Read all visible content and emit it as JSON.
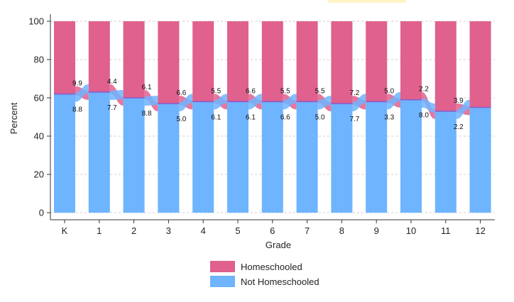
{
  "chart_data": {
    "type": "bar",
    "title": "",
    "xlabel": "Grade",
    "ylabel": "Percent",
    "ylim": [
      0,
      100
    ],
    "yticks": [
      0,
      20,
      40,
      60,
      80,
      100
    ],
    "categories": [
      "K",
      "1",
      "2",
      "3",
      "4",
      "5",
      "6",
      "7",
      "8",
      "9",
      "10",
      "11",
      "12"
    ],
    "series": [
      {
        "name": "Homeschooled",
        "color": "#E0608E",
        "values": [
          38,
          37,
          40,
          43,
          42,
          42,
          42,
          42,
          43,
          42,
          41,
          47,
          45
        ]
      },
      {
        "name": "Not Homeschooled",
        "color": "#6EB4FF",
        "values": [
          62,
          63,
          60,
          57,
          58,
          58,
          58,
          58,
          57,
          58,
          59,
          53,
          55
        ]
      }
    ],
    "flows": [
      {
        "from": "K",
        "to": "1",
        "labels": [
          "9.9",
          "8.8"
        ]
      },
      {
        "from": "1",
        "to": "2",
        "labels": [
          "4.4",
          "7.7"
        ]
      },
      {
        "from": "2",
        "to": "3",
        "labels": [
          "6.1",
          "8.8"
        ]
      },
      {
        "from": "3",
        "to": "4",
        "labels": [
          "6.6",
          "5.0"
        ]
      },
      {
        "from": "4",
        "to": "5",
        "labels": [
          "5.5",
          "6.1"
        ]
      },
      {
        "from": "5",
        "to": "6",
        "labels": [
          "6.6",
          "6.1"
        ]
      },
      {
        "from": "6",
        "to": "7",
        "labels": [
          "5.5",
          "6.6"
        ]
      },
      {
        "from": "7",
        "to": "8",
        "labels": [
          "5.5",
          "5.0"
        ]
      },
      {
        "from": "8",
        "to": "9",
        "labels": [
          "7.2",
          "7.7"
        ]
      },
      {
        "from": "9",
        "to": "10",
        "labels": [
          "5.0",
          "3.3"
        ]
      },
      {
        "from": "10",
        "to": "11",
        "labels": [
          "2.2",
          "8.0"
        ]
      },
      {
        "from": "11",
        "to": "12",
        "labels": [
          "3.9",
          "2.2"
        ]
      }
    ],
    "legend": {
      "position": "bottom",
      "entries": [
        "Homeschooled",
        "Not Homeschooled"
      ]
    },
    "colors": {
      "homeschooled": "#E0608E",
      "not_homeschooled": "#6EB4FF",
      "homeschooled_flow": "#E0608E",
      "not_homeschooled_flow": "#6EB4FF",
      "divider": "#8A5BC6"
    }
  }
}
